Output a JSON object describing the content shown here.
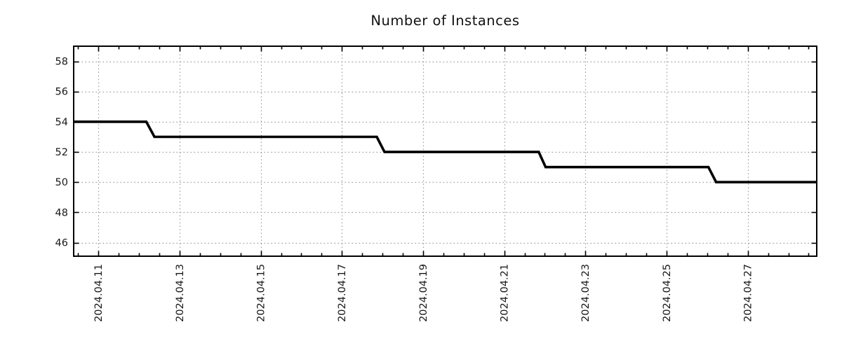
{
  "chart_data": {
    "type": "line",
    "title": "Number of Instances",
    "x_axis": {
      "tick_labels": [
        "2024.04.11",
        "2024.04.13",
        "2024.04.15",
        "2024.04.17",
        "2024.04.19",
        "2024.04.21",
        "2024.04.23",
        "2024.04.25",
        "2024.04.27"
      ],
      "tick_offsets_days": [
        0,
        2,
        4,
        6,
        8,
        10,
        12,
        14,
        16
      ],
      "range_days": [
        -0.61,
        17.7
      ],
      "minor_tick_step_days": 0.5,
      "label_rotation_deg": -90
    },
    "y_axis": {
      "ticks": [
        46,
        48,
        50,
        52,
        54,
        56,
        58
      ],
      "tick_labels": [
        "46",
        "48",
        "50",
        "52",
        "54",
        "56",
        "58"
      ],
      "range": [
        45.1,
        59.0
      ]
    },
    "series": [
      {
        "color": "#000000",
        "line_width": 3.6,
        "points_days_value": [
          [
            -0.61,
            54
          ],
          [
            1.18,
            54
          ],
          [
            1.38,
            53
          ],
          [
            6.86,
            53
          ],
          [
            7.05,
            52
          ],
          [
            10.85,
            52
          ],
          [
            11.02,
            51
          ],
          [
            15.03,
            51
          ],
          [
            15.22,
            50
          ],
          [
            17.7,
            50
          ]
        ]
      }
    ],
    "grid": {
      "style": "dotted",
      "color": "#9e9e9e",
      "on": true
    },
    "legend": "none",
    "axis_color": "#000000",
    "text_color": "#1a1a1a"
  }
}
